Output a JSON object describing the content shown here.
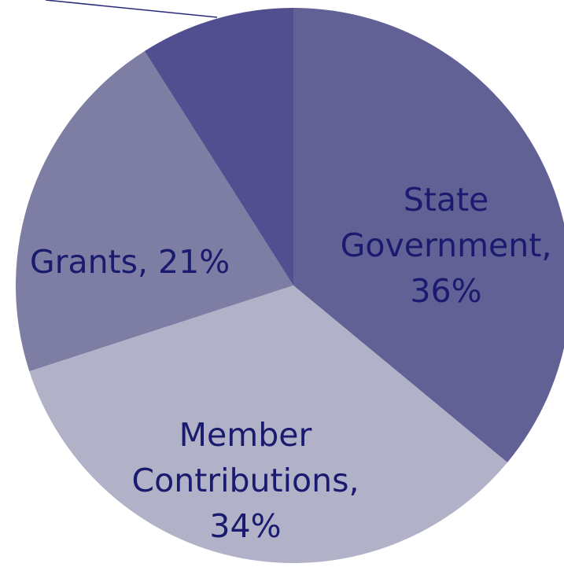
{
  "chart_data": {
    "type": "pie",
    "slices": [
      {
        "category": "State Government",
        "value": 36,
        "label_lines": [
          "State",
          "Government,",
          "36%"
        ],
        "color": "#626196"
      },
      {
        "category": "Member Contributions",
        "value": 34,
        "label_lines": [
          "Member",
          "Contributions,",
          "34%"
        ],
        "color": "#b1b1c8"
      },
      {
        "category": "Grants",
        "value": 21,
        "label_lines": [
          "Grants, 21%"
        ],
        "color": "#7e7ea4"
      },
      {
        "category": "",
        "value": 9,
        "label_lines": [],
        "color": "#514f8f"
      }
    ],
    "leader_line_color": "#2a2a7a"
  }
}
